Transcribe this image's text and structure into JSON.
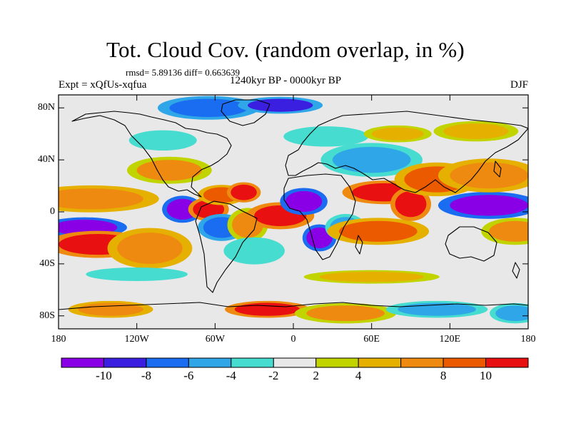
{
  "chart_data": {
    "type": "heatmap",
    "subtype": "global map (cylindrical equidistant) of filled contours",
    "title": "Tot. Cloud Cov. (random overlap, in %)",
    "stats_text": "rmsd= 5.89136 diff= 0.663639",
    "left_string": "Expt = xQfUs-xqfua",
    "center_string": "1240kyr BP - 0000kyr BP",
    "right_string": "DJF",
    "x_range": [
      -180,
      180
    ],
    "y_range": [
      -90,
      90
    ],
    "x_ticks": [
      {
        "lon": -180,
        "label": "180"
      },
      {
        "lon": -120,
        "label": "120W"
      },
      {
        "lon": -60,
        "label": "60W"
      },
      {
        "lon": 0,
        "label": "0"
      },
      {
        "lon": 60,
        "label": "60E"
      },
      {
        "lon": 120,
        "label": "120E"
      },
      {
        "lon": 180,
        "label": "180"
      }
    ],
    "y_ticks": [
      {
        "lat": 80,
        "label": "80N"
      },
      {
        "lat": 40,
        "label": "40N"
      },
      {
        "lat": 0,
        "label": "0"
      },
      {
        "lat": -40,
        "label": "40S"
      },
      {
        "lat": -80,
        "label": "80S"
      }
    ],
    "colorbar": {
      "levels": [
        -12,
        -10,
        -8,
        -6,
        -4,
        -2,
        2,
        4,
        6,
        8,
        10,
        12
      ],
      "colors": [
        "#8a00e6",
        "#3a1fe0",
        "#1a6cf0",
        "#2fa6e8",
        "#46dcd0",
        "#e8e8e8",
        "#c2d400",
        "#e6b000",
        "#ee8a10",
        "#ec5a00",
        "#e81010"
      ],
      "labels": [
        {
          "value": -10,
          "text": "-10"
        },
        {
          "value": -8,
          "text": "-8"
        },
        {
          "value": -6,
          "text": "-6"
        },
        {
          "value": -4,
          "text": "-4"
        },
        {
          "value": -2,
          "text": "-2"
        },
        {
          "value": 2,
          "text": "2"
        },
        {
          "value": 4,
          "text": "4"
        },
        {
          "value": 8,
          "text": "8"
        },
        {
          "value": 10,
          "text": "10"
        }
      ]
    },
    "anomaly_blobs": [
      {
        "lon": -155,
        "lat": 10,
        "rlon": 40,
        "rlat": 8,
        "value": 7
      },
      {
        "lon": -160,
        "lat": -12,
        "rlon": 25,
        "rlat": 6,
        "value": -11
      },
      {
        "lon": -150,
        "lat": -25,
        "rlon": 30,
        "rlat": 8,
        "value": 11
      },
      {
        "lon": -110,
        "lat": -28,
        "rlon": 25,
        "rlat": 12,
        "value": 7
      },
      {
        "lon": -95,
        "lat": 32,
        "rlon": 25,
        "rlat": 8,
        "value": 6
      },
      {
        "lon": -85,
        "lat": 2,
        "rlon": 12,
        "rlat": 8,
        "value": -11
      },
      {
        "lon": -65,
        "lat": 2,
        "rlon": 12,
        "rlat": 7,
        "value": 10
      },
      {
        "lon": -55,
        "lat": 13,
        "rlon": 14,
        "rlat": 6,
        "value": 8
      },
      {
        "lon": -55,
        "lat": -12,
        "rlon": 14,
        "rlat": 8,
        "value": -7
      },
      {
        "lon": -38,
        "lat": 15,
        "rlon": 10,
        "rlat": 6,
        "value": 10
      },
      {
        "lon": -35,
        "lat": -10,
        "rlon": 12,
        "rlat": 10,
        "value": 6
      },
      {
        "lon": -30,
        "lat": -30,
        "rlon": 18,
        "rlat": 8,
        "value": -3
      },
      {
        "lon": -10,
        "lat": -3,
        "rlon": 20,
        "rlat": 8,
        "value": 11
      },
      {
        "lon": 8,
        "lat": 8,
        "rlon": 14,
        "rlat": 8,
        "value": -11
      },
      {
        "lon": 20,
        "lat": -20,
        "rlon": 10,
        "rlat": 8,
        "value": -11
      },
      {
        "lon": 40,
        "lat": -12,
        "rlon": 12,
        "rlat": 8,
        "value": -6
      },
      {
        "lon": 65,
        "lat": -15,
        "rlon": 30,
        "rlat": 8,
        "value": 8
      },
      {
        "lon": 70,
        "lat": 15,
        "rlon": 25,
        "rlat": 7,
        "value": 10
      },
      {
        "lon": 90,
        "lat": 6,
        "rlon": 12,
        "rlat": 10,
        "value": 10
      },
      {
        "lon": 60,
        "lat": 40,
        "rlon": 30,
        "rlat": 10,
        "value": -6
      },
      {
        "lon": 110,
        "lat": 25,
        "rlon": 25,
        "rlat": 10,
        "value": 8
      },
      {
        "lon": 150,
        "lat": 5,
        "rlon": 30,
        "rlat": 8,
        "value": -11
      },
      {
        "lon": 150,
        "lat": 28,
        "rlon": 30,
        "rlat": 10,
        "value": 7
      },
      {
        "lon": 170,
        "lat": -15,
        "rlon": 20,
        "rlat": 8,
        "value": 6
      },
      {
        "lon": -65,
        "lat": 80,
        "rlon": 30,
        "rlat": 7,
        "value": -8
      },
      {
        "lon": -10,
        "lat": 82,
        "rlon": 25,
        "rlat": 5,
        "value": -10
      },
      {
        "lon": 25,
        "lat": 58,
        "rlon": 25,
        "rlat": 6,
        "value": -4
      },
      {
        "lon": 80,
        "lat": 60,
        "rlon": 20,
        "rlat": 5,
        "value": 5
      },
      {
        "lon": -100,
        "lat": 55,
        "rlon": 20,
        "rlat": 6,
        "value": -4
      },
      {
        "lon": 140,
        "lat": 62,
        "rlon": 25,
        "rlat": 6,
        "value": 5
      },
      {
        "lon": -120,
        "lat": -48,
        "rlon": 30,
        "rlat": 4,
        "value": -4
      },
      {
        "lon": 60,
        "lat": -50,
        "rlon": 40,
        "rlat": 4,
        "value": 4
      },
      {
        "lon": -20,
        "lat": -75,
        "rlon": 25,
        "rlat": 5,
        "value": 10
      },
      {
        "lon": 40,
        "lat": -78,
        "rlon": 30,
        "rlat": 6,
        "value": 6
      },
      {
        "lon": 110,
        "lat": -75,
        "rlon": 30,
        "rlat": 5,
        "value": -5
      },
      {
        "lon": -140,
        "lat": -75,
        "rlon": 25,
        "rlat": 5,
        "value": 7
      },
      {
        "lon": 170,
        "lat": -78,
        "rlon": 15,
        "rlat": 6,
        "value": -6
      }
    ]
  }
}
